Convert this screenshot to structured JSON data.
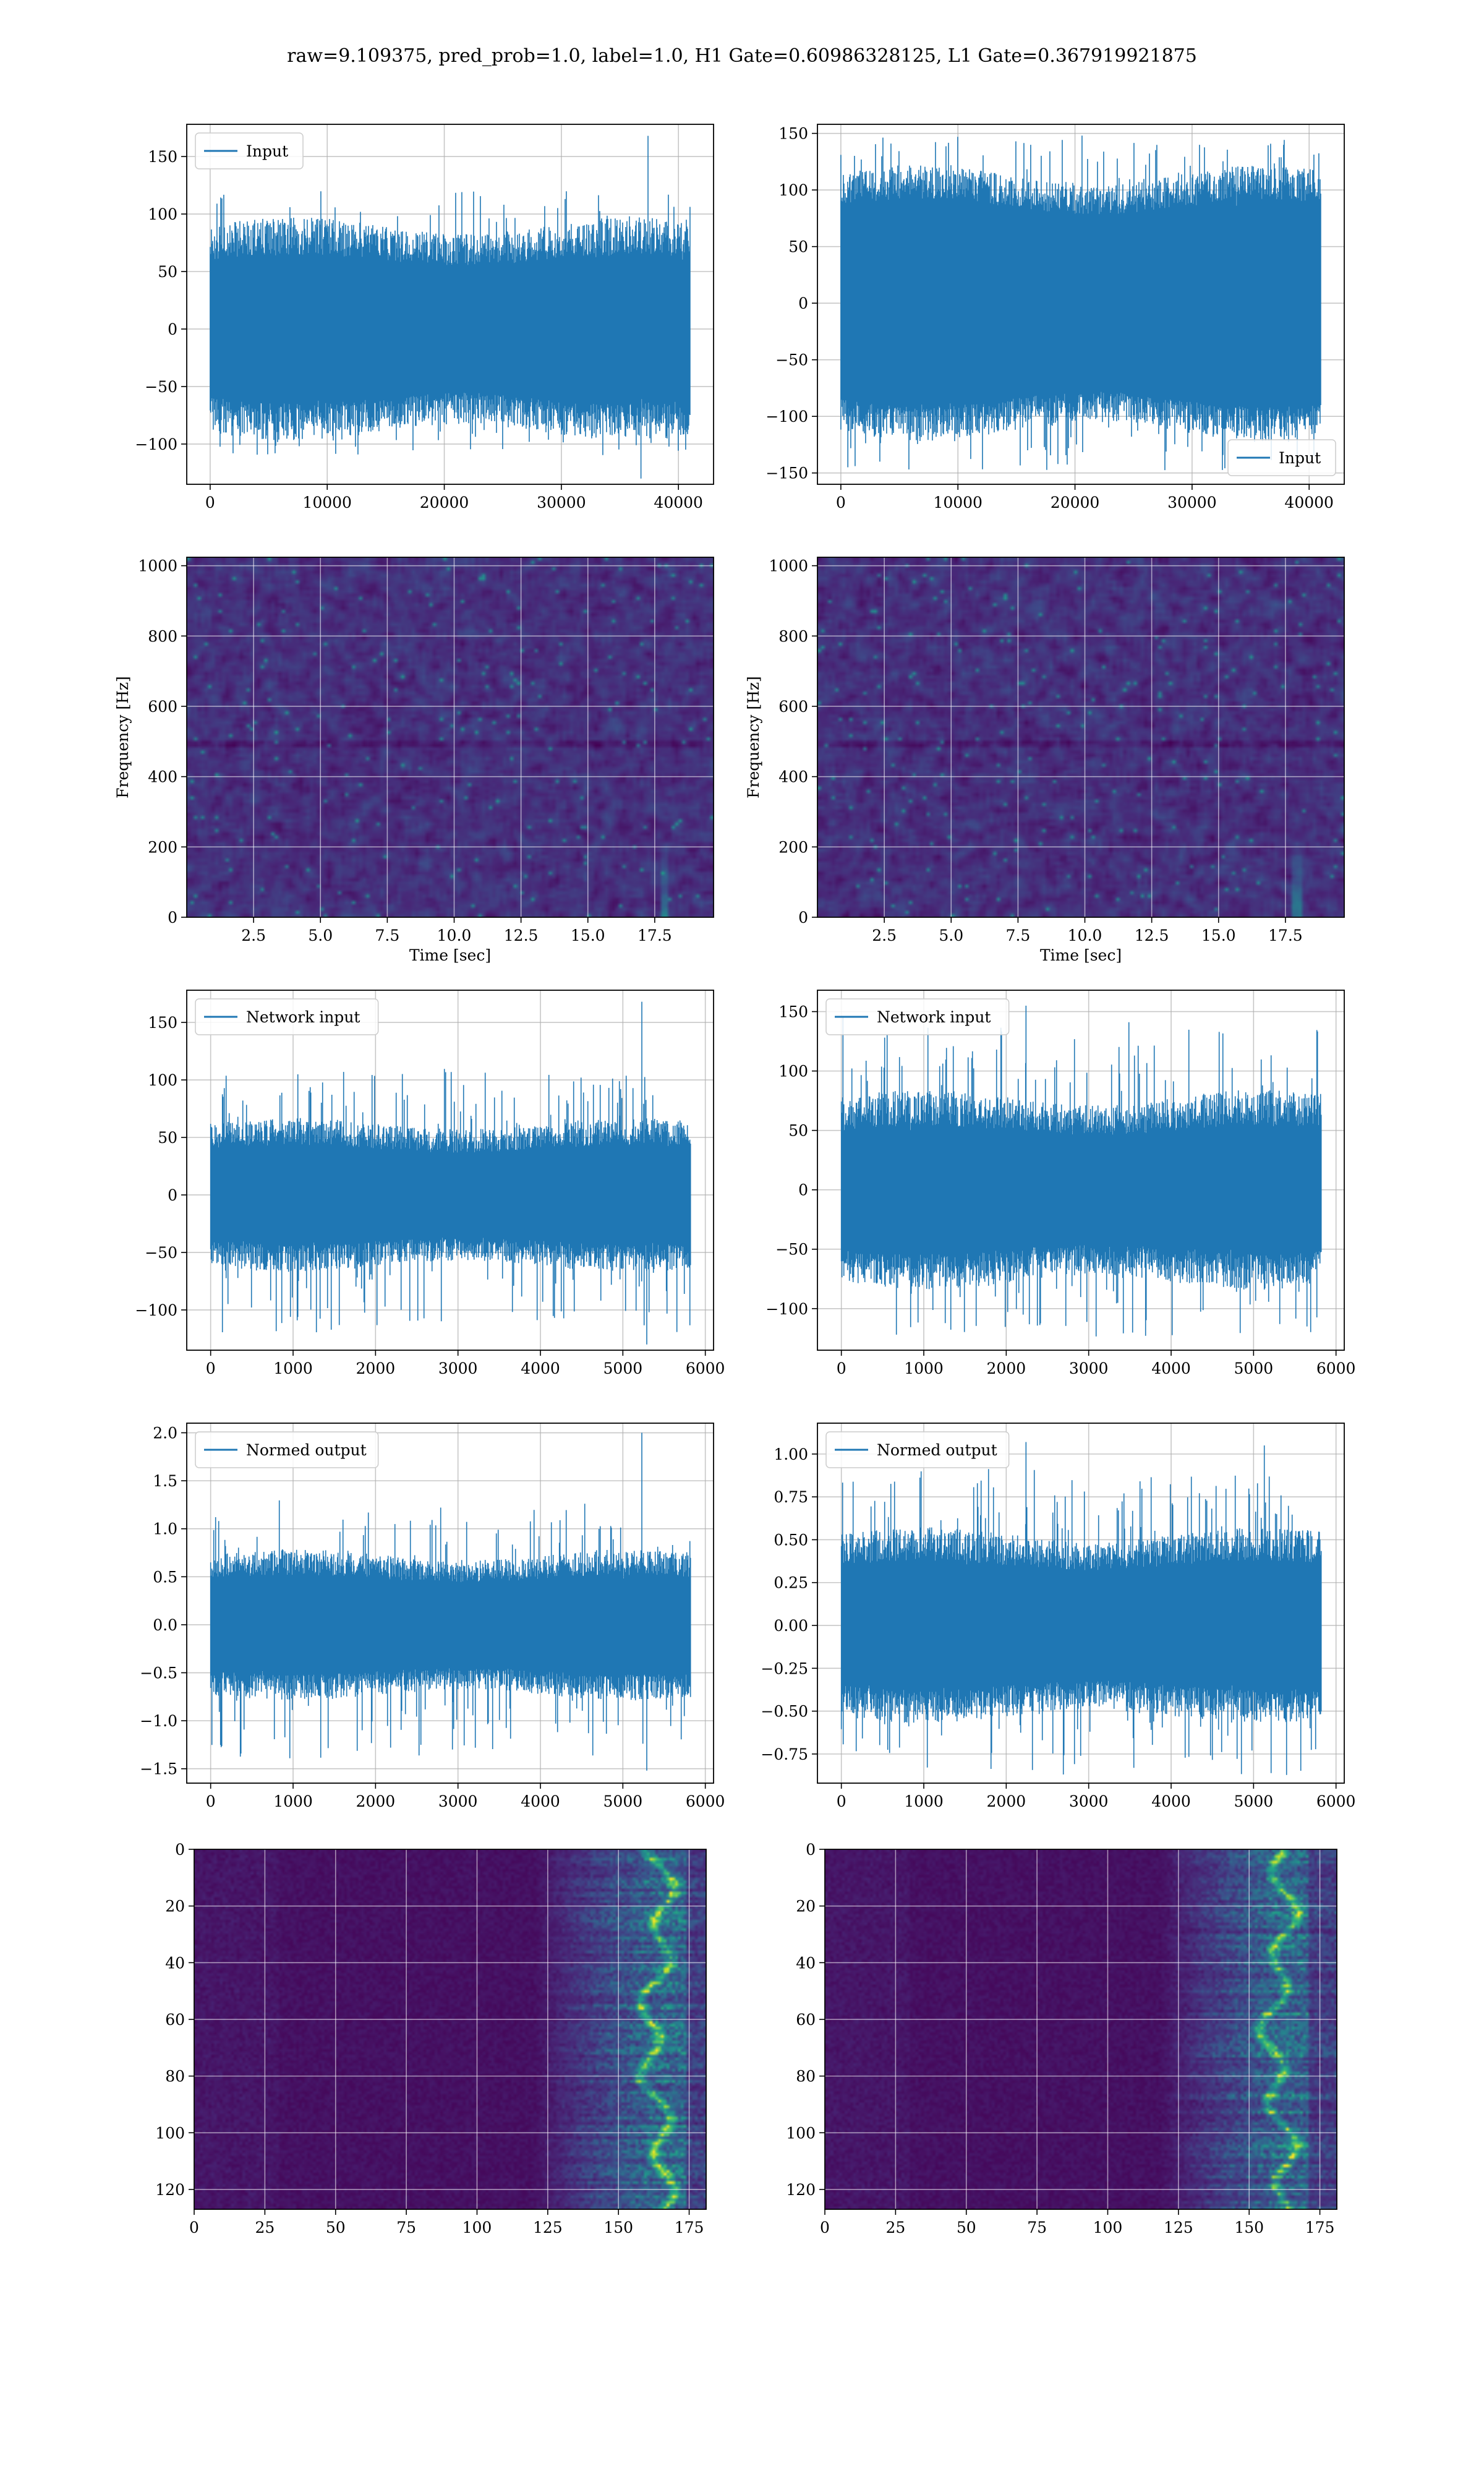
{
  "figure": {
    "title": "raw=9.109375, pred_prob=1.0, label=1.0, H1 Gate=0.60986328125, L1 Gate=0.367919921875",
    "line_color": "#1f77b4"
  },
  "chart_data": [
    {
      "id": "p1",
      "type": "line",
      "legend": "Input",
      "legend_loc": "upper-left",
      "grid": true,
      "xlim": [
        -2000,
        43000
      ],
      "ylim": [
        -135,
        178
      ],
      "xticks": [
        {
          "v": 0,
          "t": "0"
        },
        {
          "v": 10000,
          "t": "10000"
        },
        {
          "v": 20000,
          "t": "20000"
        },
        {
          "v": 30000,
          "t": "30000"
        },
        {
          "v": 40000,
          "t": "40000"
        }
      ],
      "yticks": [
        {
          "v": -100,
          "t": "−100"
        },
        {
          "v": -50,
          "t": "−50"
        },
        {
          "v": 0,
          "t": "0"
        },
        {
          "v": 50,
          "t": "50"
        },
        {
          "v": 100,
          "t": "100"
        },
        {
          "v": 150,
          "t": "150"
        }
      ],
      "signal": {
        "n": 41000,
        "amp": 60,
        "spread": 30,
        "peakmax": 120,
        "peakmin": -110,
        "spikes": [
          [
            37400,
            168
          ],
          [
            36800,
            -130
          ]
        ]
      }
    },
    {
      "id": "p2",
      "type": "line",
      "legend": "Input",
      "legend_loc": "lower-right",
      "grid": true,
      "xlim": [
        -2000,
        43000
      ],
      "ylim": [
        -160,
        158
      ],
      "xticks": [
        {
          "v": 0,
          "t": "0"
        },
        {
          "v": 10000,
          "t": "10000"
        },
        {
          "v": 20000,
          "t": "20000"
        },
        {
          "v": 30000,
          "t": "30000"
        },
        {
          "v": 40000,
          "t": "40000"
        }
      ],
      "yticks": [
        {
          "v": -150,
          "t": "−150"
        },
        {
          "v": -100,
          "t": "−100"
        },
        {
          "v": -50,
          "t": "−50"
        },
        {
          "v": 0,
          "t": "0"
        },
        {
          "v": 50,
          "t": "50"
        },
        {
          "v": 100,
          "t": "100"
        },
        {
          "v": 150,
          "t": "150"
        }
      ],
      "signal": {
        "n": 41000,
        "amp": 85,
        "spread": 28,
        "peakmax": 148,
        "peakmin": -148,
        "spikes": [
          [
            20600,
            148
          ],
          [
            600,
            -145
          ]
        ]
      }
    },
    {
      "id": "p3",
      "type": "heatmap",
      "xlabel": "Time [sec]",
      "ylabel": "Frequency [Hz]",
      "grid": true,
      "xlim": [
        0,
        19.7
      ],
      "ylim": [
        0,
        1024
      ],
      "colormap": "viridis",
      "xticks": [
        {
          "v": 2.5,
          "t": "2.5"
        },
        {
          "v": 5,
          "t": "5.0"
        },
        {
          "v": 7.5,
          "t": "7.5"
        },
        {
          "v": 10,
          "t": "10.0"
        },
        {
          "v": 12.5,
          "t": "12.5"
        },
        {
          "v": 15,
          "t": "15.0"
        },
        {
          "v": 17.5,
          "t": "17.5"
        }
      ],
      "yticks": [
        {
          "v": 0,
          "t": "0"
        },
        {
          "v": 200,
          "t": "200"
        },
        {
          "v": 400,
          "t": "400"
        },
        {
          "v": 600,
          "t": "600"
        },
        {
          "v": 800,
          "t": "800"
        },
        {
          "v": 1000,
          "t": "1000"
        }
      ],
      "noise": {
        "cols": 150,
        "rows": 110,
        "base": 0.14,
        "spread": 0.16,
        "seed": 11,
        "chirp_x": 17.8
      }
    },
    {
      "id": "p4",
      "type": "heatmap",
      "xlabel": "Time [sec]",
      "ylabel": "Frequency [Hz]",
      "grid": true,
      "xlim": [
        0,
        19.7
      ],
      "ylim": [
        0,
        1024
      ],
      "colormap": "viridis",
      "xticks": [
        {
          "v": 2.5,
          "t": "2.5"
        },
        {
          "v": 5,
          "t": "5.0"
        },
        {
          "v": 7.5,
          "t": "7.5"
        },
        {
          "v": 10,
          "t": "10.0"
        },
        {
          "v": 12.5,
          "t": "12.5"
        },
        {
          "v": 15,
          "t": "15.0"
        },
        {
          "v": 17.5,
          "t": "17.5"
        }
      ],
      "yticks": [
        {
          "v": 0,
          "t": "0"
        },
        {
          "v": 200,
          "t": "200"
        },
        {
          "v": 400,
          "t": "400"
        },
        {
          "v": 600,
          "t": "600"
        },
        {
          "v": 800,
          "t": "800"
        },
        {
          "v": 1000,
          "t": "1000"
        }
      ],
      "noise": {
        "cols": 150,
        "rows": 110,
        "base": 0.14,
        "spread": 0.16,
        "seed": 23,
        "chirp_x": 17.9
      }
    },
    {
      "id": "p5",
      "type": "line",
      "legend": "Network input",
      "legend_loc": "upper-left",
      "grid": true,
      "xlim": [
        -290,
        6100
      ],
      "ylim": [
        -135,
        178
      ],
      "xticks": [
        {
          "v": 0,
          "t": "0"
        },
        {
          "v": 1000,
          "t": "1000"
        },
        {
          "v": 2000,
          "t": "2000"
        },
        {
          "v": 3000,
          "t": "3000"
        },
        {
          "v": 4000,
          "t": "4000"
        },
        {
          "v": 5000,
          "t": "5000"
        },
        {
          "v": 6000,
          "t": "6000"
        }
      ],
      "yticks": [
        {
          "v": -100,
          "t": "−100"
        },
        {
          "v": -50,
          "t": "−50"
        },
        {
          "v": 0,
          "t": "0"
        },
        {
          "v": 50,
          "t": "50"
        },
        {
          "v": 100,
          "t": "100"
        },
        {
          "v": 150,
          "t": "150"
        }
      ],
      "signal": {
        "n": 5820,
        "amp": 40,
        "spread": 22,
        "peakmax": 110,
        "peakmin": -120,
        "spikes": [
          [
            5230,
            168
          ],
          [
            5290,
            -130
          ]
        ]
      }
    },
    {
      "id": "p6",
      "type": "line",
      "legend": "Network input",
      "legend_loc": "upper-left",
      "grid": true,
      "xlim": [
        -290,
        6100
      ],
      "ylim": [
        -135,
        168
      ],
      "xticks": [
        {
          "v": 0,
          "t": "0"
        },
        {
          "v": 1000,
          "t": "1000"
        },
        {
          "v": 2000,
          "t": "2000"
        },
        {
          "v": 3000,
          "t": "3000"
        },
        {
          "v": 4000,
          "t": "4000"
        },
        {
          "v": 5000,
          "t": "5000"
        },
        {
          "v": 6000,
          "t": "6000"
        }
      ],
      "yticks": [
        {
          "v": -100,
          "t": "−100"
        },
        {
          "v": -50,
          "t": "−50"
        },
        {
          "v": 0,
          "t": "0"
        },
        {
          "v": 50,
          "t": "50"
        },
        {
          "v": 100,
          "t": "100"
        },
        {
          "v": 150,
          "t": "150"
        }
      ],
      "signal": {
        "n": 5820,
        "amp": 50,
        "spread": 28,
        "peakmax": 142,
        "peakmin": -125,
        "spikes": [
          [
            2240,
            155
          ],
          [
            20,
            145
          ]
        ]
      }
    },
    {
      "id": "p7",
      "type": "line",
      "legend": "Normed output",
      "legend_loc": "upper-left",
      "grid": true,
      "xlim": [
        -290,
        6100
      ],
      "ylim": [
        -1.65,
        2.1
      ],
      "xticks": [
        {
          "v": 0,
          "t": "0"
        },
        {
          "v": 1000,
          "t": "1000"
        },
        {
          "v": 2000,
          "t": "2000"
        },
        {
          "v": 3000,
          "t": "3000"
        },
        {
          "v": 4000,
          "t": "4000"
        },
        {
          "v": 5000,
          "t": "5000"
        },
        {
          "v": 6000,
          "t": "6000"
        }
      ],
      "yticks": [
        {
          "v": -1.5,
          "t": "−1.5"
        },
        {
          "v": -1,
          "t": "−1.0"
        },
        {
          "v": -0.5,
          "t": "−0.5"
        },
        {
          "v": 0,
          "t": "0.0"
        },
        {
          "v": 0.5,
          "t": "0.5"
        },
        {
          "v": 1,
          "t": "1.0"
        },
        {
          "v": 1.5,
          "t": "1.5"
        },
        {
          "v": 2,
          "t": "2.0"
        }
      ],
      "signal": {
        "n": 5820,
        "amp": 0.48,
        "spread": 0.25,
        "peakmax": 1.3,
        "peakmin": -1.4,
        "spikes": [
          [
            5230,
            2.0
          ],
          [
            5290,
            -1.52
          ]
        ]
      }
    },
    {
      "id": "p8",
      "type": "line",
      "legend": "Normed output",
      "legend_loc": "upper-left",
      "grid": true,
      "xlim": [
        -290,
        6100
      ],
      "ylim": [
        -0.92,
        1.18
      ],
      "xticks": [
        {
          "v": 0,
          "t": "0"
        },
        {
          "v": 1000,
          "t": "1000"
        },
        {
          "v": 2000,
          "t": "2000"
        },
        {
          "v": 3000,
          "t": "3000"
        },
        {
          "v": 4000,
          "t": "4000"
        },
        {
          "v": 5000,
          "t": "5000"
        },
        {
          "v": 6000,
          "t": "6000"
        }
      ],
      "yticks": [
        {
          "v": -0.75,
          "t": "−0.75"
        },
        {
          "v": -0.5,
          "t": "−0.50"
        },
        {
          "v": -0.25,
          "t": "−0.25"
        },
        {
          "v": 0,
          "t": "0.00"
        },
        {
          "v": 0.25,
          "t": "0.25"
        },
        {
          "v": 0.5,
          "t": "0.50"
        },
        {
          "v": 0.75,
          "t": "0.75"
        },
        {
          "v": 1,
          "t": "1.00"
        }
      ],
      "signal": {
        "n": 5820,
        "amp": 0.35,
        "spread": 0.18,
        "peakmax": 0.92,
        "peakmin": -0.88,
        "spikes": [
          [
            2240,
            1.07
          ],
          [
            5130,
            1.05
          ]
        ]
      }
    },
    {
      "id": "p9",
      "type": "heatmap",
      "grid": true,
      "inverted_y": true,
      "xlim": [
        0,
        181
      ],
      "ylim": [
        0,
        127
      ],
      "colormap": "viridis",
      "xticks": [
        {
          "v": 0,
          "t": "0"
        },
        {
          "v": 25,
          "t": "25"
        },
        {
          "v": 50,
          "t": "50"
        },
        {
          "v": 75,
          "t": "75"
        },
        {
          "v": 100,
          "t": "100"
        },
        {
          "v": 125,
          "t": "125"
        },
        {
          "v": 150,
          "t": "150"
        },
        {
          "v": 175,
          "t": "175"
        }
      ],
      "yticks": [
        {
          "v": 0,
          "t": "0"
        },
        {
          "v": 20,
          "t": "20"
        },
        {
          "v": 40,
          "t": "40"
        },
        {
          "v": 60,
          "t": "60"
        },
        {
          "v": 80,
          "t": "80"
        },
        {
          "v": 100,
          "t": "100"
        },
        {
          "v": 120,
          "t": "120"
        }
      ],
      "feature": {
        "cols": 181,
        "rows": 128,
        "seed": 5,
        "onset": 120,
        "hot_center": 163
      }
    },
    {
      "id": "p10",
      "type": "heatmap",
      "grid": true,
      "inverted_y": true,
      "xlim": [
        0,
        181
      ],
      "ylim": [
        0,
        127
      ],
      "colormap": "viridis",
      "xticks": [
        {
          "v": 0,
          "t": "0"
        },
        {
          "v": 25,
          "t": "25"
        },
        {
          "v": 50,
          "t": "50"
        },
        {
          "v": 75,
          "t": "75"
        },
        {
          "v": 100,
          "t": "100"
        },
        {
          "v": 125,
          "t": "125"
        },
        {
          "v": 150,
          "t": "150"
        },
        {
          "v": 175,
          "t": "175"
        }
      ],
      "yticks": [
        {
          "v": 0,
          "t": "0"
        },
        {
          "v": 20,
          "t": "20"
        },
        {
          "v": 40,
          "t": "40"
        },
        {
          "v": 60,
          "t": "60"
        },
        {
          "v": 80,
          "t": "80"
        },
        {
          "v": 100,
          "t": "100"
        },
        {
          "v": 120,
          "t": "120"
        }
      ],
      "feature": {
        "cols": 181,
        "rows": 128,
        "seed": 9,
        "onset": 118,
        "hot_center": 160
      }
    }
  ]
}
